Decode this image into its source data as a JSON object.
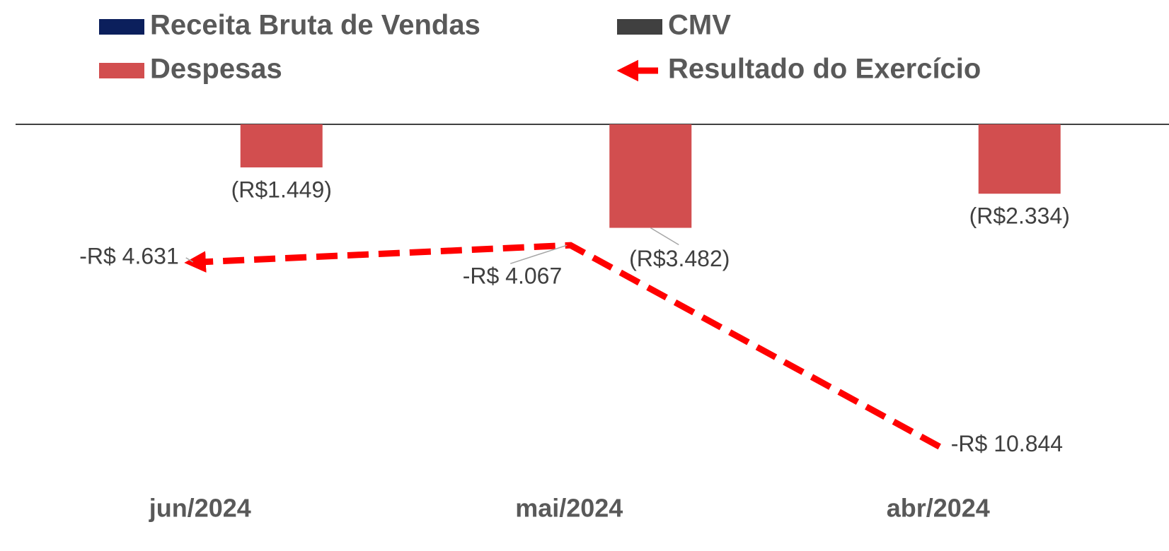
{
  "chart_data": {
    "type": "combo",
    "categories": [
      "jun/2024",
      "mai/2024",
      "abr/2024"
    ],
    "series": [
      {
        "name": "Receita Bruta de Vendas",
        "type": "bar",
        "color": "#0b1f5c",
        "values": [
          null,
          null,
          null
        ]
      },
      {
        "name": "CMV",
        "type": "bar",
        "color": "#404040",
        "values": [
          null,
          null,
          null
        ]
      },
      {
        "name": "Despesas",
        "type": "bar",
        "color": "#d24e4f",
        "values": [
          -1449,
          -3482,
          -2334
        ],
        "value_labels": [
          "(R$1.449)",
          "(R$3.482)",
          "(R$2.334)"
        ]
      },
      {
        "name": "Resultado do Exercício",
        "type": "line",
        "color": "#ff0000",
        "dashed": true,
        "values": [
          -4631,
          -4067,
          -10844
        ],
        "value_labels": [
          "-R$ 4.631",
          "-R$ 4.067",
          "-R$ 10.844"
        ]
      }
    ],
    "ylim": [
      -12000,
      0
    ]
  }
}
